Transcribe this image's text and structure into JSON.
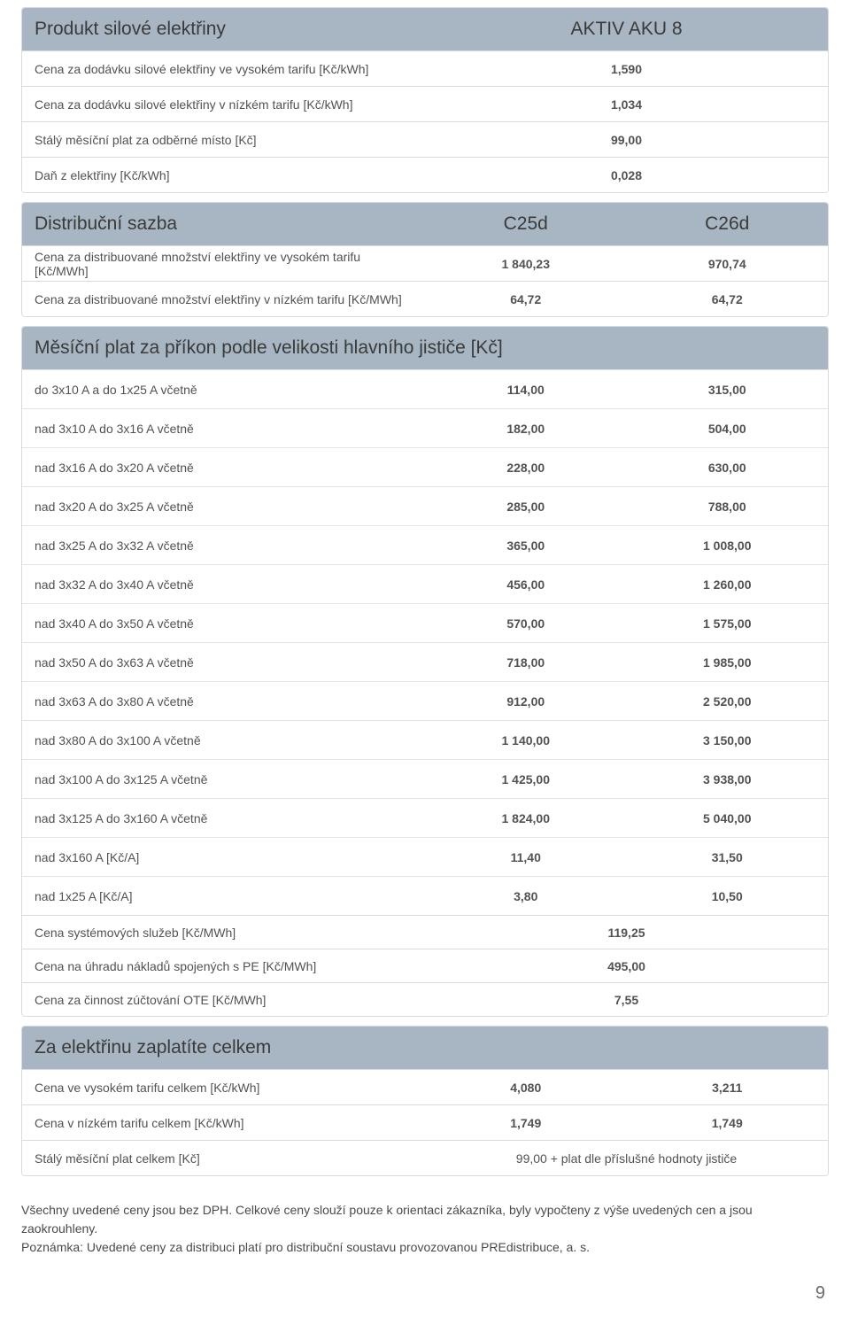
{
  "product_table": {
    "header_label": "Produkt silové elektřiny",
    "header_value": "AKTIV AKU 8",
    "rows": [
      {
        "label": "Cena za dodávku silové elektřiny ve vysokém tarifu [Kč/kWh]",
        "value": "1,590"
      },
      {
        "label": "Cena za dodávku silové elektřiny v nízkém tarifu [Kč/kWh]",
        "value": "1,034"
      },
      {
        "label": "Stálý měsíční plat za odběrné místo [Kč]",
        "value": "99,00"
      },
      {
        "label": "Daň z elektřiny [Kč/kWh]",
        "value": "0,028"
      }
    ]
  },
  "dist_table": {
    "header_label": "Distribuční sazba",
    "col1": "C25d",
    "col2": "C26d",
    "rows": [
      {
        "label": "Cena za distribuované množství elektřiny ve vysokém tarifu [Kč/MWh]",
        "v1": "1 840,23",
        "v2": "970,74"
      },
      {
        "label": "Cena za distribuované množství elektřiny v nízkém tarifu [Kč/MWh]",
        "v1": "64,72",
        "v2": "64,72"
      }
    ]
  },
  "breaker_table": {
    "header": "Měsíční plat za příkon podle velikosti hlavního jističe [Kč]",
    "rows": [
      {
        "label": "do 3x10 A a do 1x25 A včetně",
        "v1": "114,00",
        "v2": "315,00"
      },
      {
        "label": "nad 3x10 A do 3x16 A včetně",
        "v1": "182,00",
        "v2": "504,00"
      },
      {
        "label": "nad 3x16 A do 3x20 A včetně",
        "v1": "228,00",
        "v2": "630,00"
      },
      {
        "label": "nad 3x20 A do 3x25 A včetně",
        "v1": "285,00",
        "v2": "788,00"
      },
      {
        "label": "nad 3x25 A do 3x32 A včetně",
        "v1": "365,00",
        "v2": "1 008,00"
      },
      {
        "label": "nad 3x32 A do 3x40 A včetně",
        "v1": "456,00",
        "v2": "1 260,00"
      },
      {
        "label": "nad 3x40 A do 3x50 A včetně",
        "v1": "570,00",
        "v2": "1 575,00"
      },
      {
        "label": "nad 3x50 A do 3x63 A včetně",
        "v1": "718,00",
        "v2": "1 985,00"
      },
      {
        "label": "nad 3x63 A do 3x80 A včetně",
        "v1": "912,00",
        "v2": "2 520,00"
      },
      {
        "label": "nad 3x80 A do 3x100 A včetně",
        "v1": "1 140,00",
        "v2": "3 150,00"
      },
      {
        "label": "nad 3x100 A do 3x125 A včetně",
        "v1": "1 425,00",
        "v2": "3 938,00"
      },
      {
        "label": "nad 3x125 A do 3x160 A včetně",
        "v1": "1 824,00",
        "v2": "5 040,00"
      },
      {
        "label": "nad 3x160 A [Kč/A]",
        "v1": "11,40",
        "v2": "31,50"
      },
      {
        "label": "nad 1x25 A [Kč/A]",
        "v1": "3,80",
        "v2": "10,50"
      }
    ],
    "sys_rows": [
      {
        "label": "Cena systémových služeb [Kč/MWh]",
        "value": "119,25"
      },
      {
        "label": "Cena na úhradu nákladů spojených s PE [Kč/MWh]",
        "value": "495,00"
      },
      {
        "label": "Cena za činnost zúčtování OTE [Kč/MWh]",
        "value": "7,55"
      }
    ]
  },
  "total_table": {
    "header": "Za elektřinu zaplatíte celkem",
    "rows_2col": [
      {
        "label": "Cena ve vysokém tarifu celkem [Kč/kWh]",
        "v1": "4,080",
        "v2": "3,211"
      },
      {
        "label": "Cena v nízkém tarifu celkem [Kč/kWh]",
        "v1": "1,749",
        "v2": "1,749"
      }
    ],
    "row_merged": {
      "label": "Stálý měsíční plat celkem [Kč]",
      "value": "99,00 + plat dle příslušné hodnoty jističe"
    }
  },
  "notes": {
    "line1": "Všechny uvedené ceny jsou bez DPH. Celkové ceny slouží pouze k orientaci zákazníka, byly vypočteny z výše uvedených cen a jsou zaokrouhleny.",
    "line2": "Poznámka: Uvedené ceny za distribuci platí pro distribuční soustavu provozovanou PREdistribuce, a. s."
  },
  "page_num": "9",
  "colors": {
    "header_bg": "#a7b6c2",
    "border": "#d6dbdf",
    "text": "#525252"
  }
}
